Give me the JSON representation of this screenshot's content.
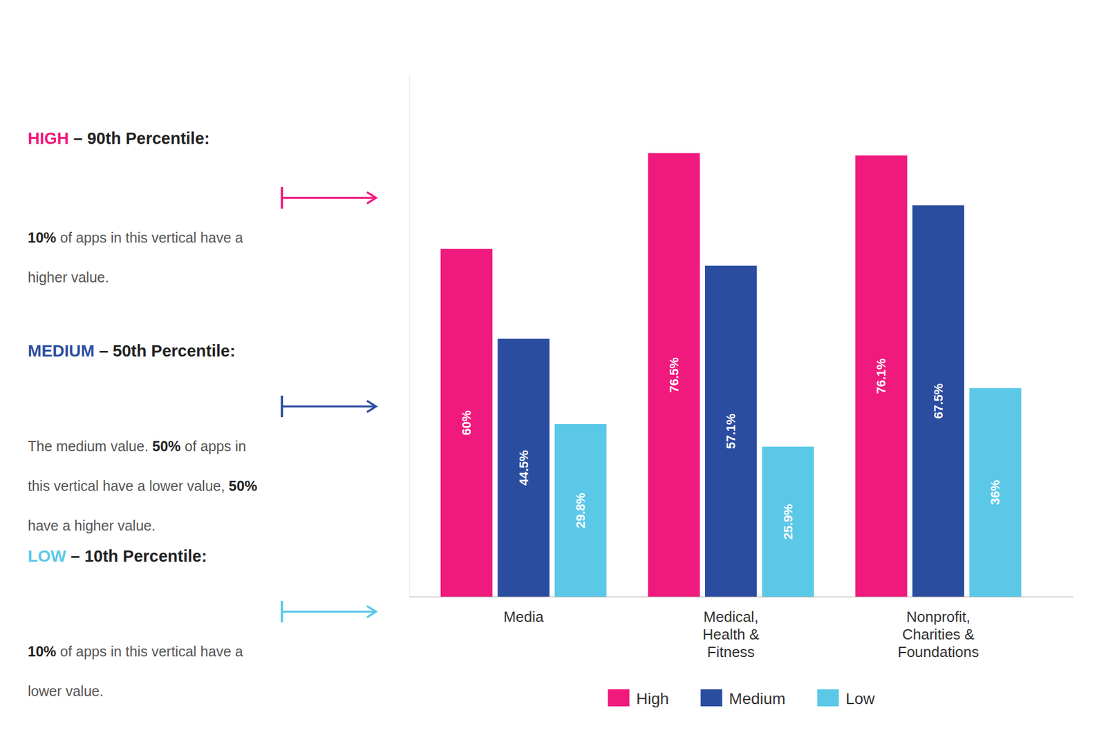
{
  "chart_data": {
    "type": "bar",
    "categories": [
      "Media",
      "Medical,\nHealth &\nFitness",
      "Nonprofit,\nCharities &\nFoundations"
    ],
    "series": [
      {
        "name": "High",
        "color": "#F0197D",
        "values": [
          60.0,
          76.5,
          76.1
        ],
        "value_labels": [
          "60%",
          "76.5%",
          "76.1%"
        ]
      },
      {
        "name": "Medium",
        "color": "#2B4DA0",
        "values": [
          44.5,
          57.1,
          67.5
        ],
        "value_labels": [
          "44.5%",
          "57.1%",
          "67.5%"
        ]
      },
      {
        "name": "Low",
        "color": "#5BC8E8",
        "values": [
          29.8,
          25.9,
          36.0
        ],
        "value_labels": [
          "29.8%",
          "25.9%",
          "36%"
        ]
      }
    ],
    "ylim": [
      0,
      90
    ],
    "data_labels": true,
    "tick_labels": "x",
    "grid": false,
    "legend": "bottom",
    "annotations": [
      {
        "title": [
          "HIGH",
          " – 90th Percentile:"
        ],
        "text": [
          [
            "10%",
            " of apps in this vertical have a"
          ],
          [
            "higher value."
          ]
        ]
      },
      {
        "title": [
          "MEDIUM",
          " – 50th Percentile:"
        ],
        "text": [
          [
            "The medium value. ",
            "50%",
            " of apps in"
          ],
          [
            "this vertical have a lower value, ",
            "50%"
          ],
          [
            "have a higher value."
          ]
        ]
      },
      {
        "title": [
          "LOW",
          " – 10th Percentile:"
        ],
        "text": [
          [
            "10%",
            " of apps in this vertical have a"
          ],
          [
            "lower value."
          ]
        ]
      }
    ]
  }
}
